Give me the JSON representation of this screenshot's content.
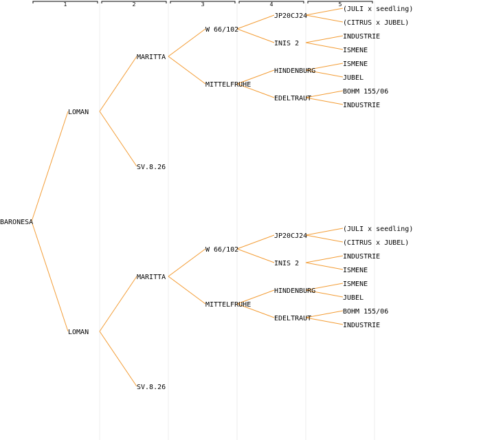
{
  "colors": {
    "edge": "#f39c34",
    "text": "#000000",
    "separator": "#ececec",
    "background": "#ffffff"
  },
  "generations": [
    "1",
    "2",
    "3",
    "4",
    "5"
  ],
  "pedigree": {
    "name": "BARONESA",
    "parents": [
      {
        "name": "LOMAN",
        "parents": [
          {
            "name": "MARITTA",
            "parents": [
              {
                "name": "W 66/102",
                "parents": [
                  {
                    "name": "JP20CJ24",
                    "parents": [
                      {
                        "name": "(JULI x seedling)"
                      },
                      {
                        "name": "(CITRUS x JUBEL)"
                      }
                    ]
                  },
                  {
                    "name": "INIS 2",
                    "parents": [
                      {
                        "name": "INDUSTRIE"
                      },
                      {
                        "name": "ISMENE"
                      }
                    ]
                  }
                ]
              },
              {
                "name": "MITTELFRUHE",
                "parents": [
                  {
                    "name": "HINDENBURG",
                    "parents": [
                      {
                        "name": "ISMENE"
                      },
                      {
                        "name": "JUBEL"
                      }
                    ]
                  },
                  {
                    "name": "EDELTRAUT",
                    "parents": [
                      {
                        "name": "BOHM 155/06"
                      },
                      {
                        "name": "INDUSTRIE"
                      }
                    ]
                  }
                ]
              }
            ]
          },
          {
            "name": "SV.8.26"
          }
        ]
      },
      {
        "name": "LOMAN",
        "parents": [
          {
            "name": "MARITTA",
            "parents": [
              {
                "name": "W 66/102",
                "parents": [
                  {
                    "name": "JP20CJ24",
                    "parents": [
                      {
                        "name": "(JULI x seedling)"
                      },
                      {
                        "name": "(CITRUS x JUBEL)"
                      }
                    ]
                  },
                  {
                    "name": "INIS 2",
                    "parents": [
                      {
                        "name": "INDUSTRIE"
                      },
                      {
                        "name": "ISMENE"
                      }
                    ]
                  }
                ]
              },
              {
                "name": "MITTELFRUHE",
                "parents": [
                  {
                    "name": "HINDENBURG",
                    "parents": [
                      {
                        "name": "ISMENE"
                      },
                      {
                        "name": "JUBEL"
                      }
                    ]
                  },
                  {
                    "name": "EDELTRAUT",
                    "parents": [
                      {
                        "name": "BOHM 155/06"
                      },
                      {
                        "name": "INDUSTRIE"
                      }
                    ]
                  }
                ]
              }
            ]
          },
          {
            "name": "SV.8.26"
          }
        ]
      }
    ]
  }
}
